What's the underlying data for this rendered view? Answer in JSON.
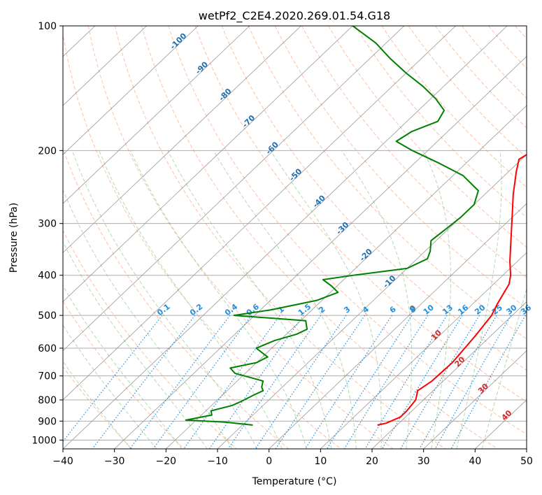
{
  "chart_data": {
    "type": "line",
    "title": "wetPf2_C2E4.2020.269.01.54.G18",
    "xlabel": "Temperature (°C)",
    "ylabel": "Pressure (hPa)",
    "xlim": [
      -40,
      50
    ],
    "ylim": [
      1050,
      100
    ],
    "y_scale": "log",
    "x_ticks": [
      -40,
      -30,
      -20,
      -10,
      0,
      10,
      20,
      30,
      40,
      50
    ],
    "y_ticks": [
      100,
      200,
      300,
      400,
      500,
      600,
      700,
      800,
      900,
      1000
    ],
    "grid": true,
    "colors": {
      "temperature": "#ff0000",
      "dewpoint": "#008000",
      "dry_adiabat": "#ff8c5a",
      "moist_adiabat": "#6ab46a",
      "mixing_ratio": "#1f8fe0",
      "isotherm": "#666666",
      "isotherm_label_neg": "#1f6fb0",
      "isotherm_label_pos": "#d62728"
    },
    "isotherm_labels": [
      "-100",
      "-90",
      "-80",
      "-70",
      "-60",
      "-50",
      "-40",
      "-30",
      "-20",
      "-10",
      "0",
      "10",
      "20",
      "30",
      "40"
    ],
    "isotherm_label_values": [
      -100,
      -90,
      -80,
      -70,
      -60,
      -50,
      -40,
      -30,
      -20,
      -10,
      0,
      10,
      20,
      30,
      40
    ],
    "mixing_ratio_labels": [
      "0.1",
      "0.2",
      "0.4",
      "0.6",
      "1",
      "1.5",
      "2",
      "3",
      "4",
      "6",
      "8",
      "10",
      "13",
      "16",
      "20",
      "25",
      "30",
      "36"
    ],
    "mixing_ratio_values": [
      0.1,
      0.2,
      0.4,
      0.6,
      1,
      1.5,
      2,
      3,
      4,
      6,
      8,
      10,
      13,
      16,
      20,
      25,
      30,
      36
    ],
    "series": [
      {
        "key": "temperature",
        "pressure": [
          920,
          910,
          880,
          850,
          800,
          760,
          720,
          650,
          560,
          500,
          470,
          420,
          400,
          370,
          330,
          290,
          255,
          225,
          210,
          200,
          188,
          175,
          162,
          150,
          140,
          130,
          120,
          110,
          100
        ],
        "temperature": [
          16.2,
          17.5,
          19,
          19,
          18.5,
          17,
          17.8,
          18,
          17,
          16,
          14.8,
          13,
          11.5,
          8.5,
          4.5,
          0,
          -4.5,
          -8.5,
          -10.5,
          -9.5,
          -5,
          -1.5,
          -2.5,
          -3.5,
          -3,
          -4,
          -4.5,
          -3.5,
          -3.5
        ]
      },
      {
        "key": "dewpoint",
        "pressure": [
          920,
          905,
          895,
          870,
          850,
          825,
          805,
          780,
          760,
          745,
          720,
          690,
          670,
          650,
          630,
          600,
          575,
          555,
          540,
          515,
          500,
          485,
          460,
          440,
          425,
          410,
          400,
          385,
          365,
          350,
          330,
          310,
          290,
          270,
          250,
          230,
          215,
          200,
          190,
          180,
          170,
          160,
          150,
          140,
          130,
          120,
          110,
          100
        ],
        "dewpoint": [
          -8,
          -14,
          -22,
          -18,
          -19,
          -16,
          -15,
          -14,
          -13,
          -14,
          -15,
          -22,
          -24,
          -20,
          -19,
          -23,
          -21,
          -18,
          -17,
          -19,
          -34,
          -28,
          -21,
          -18.5,
          -21,
          -24,
          -19,
          -10,
          -8,
          -9,
          -11,
          -10.5,
          -10,
          -10,
          -12,
          -18,
          -25,
          -33,
          -38,
          -37,
          -34,
          -35,
          -39,
          -44,
          -50,
          -56,
          -62,
          -70
        ]
      }
    ]
  }
}
